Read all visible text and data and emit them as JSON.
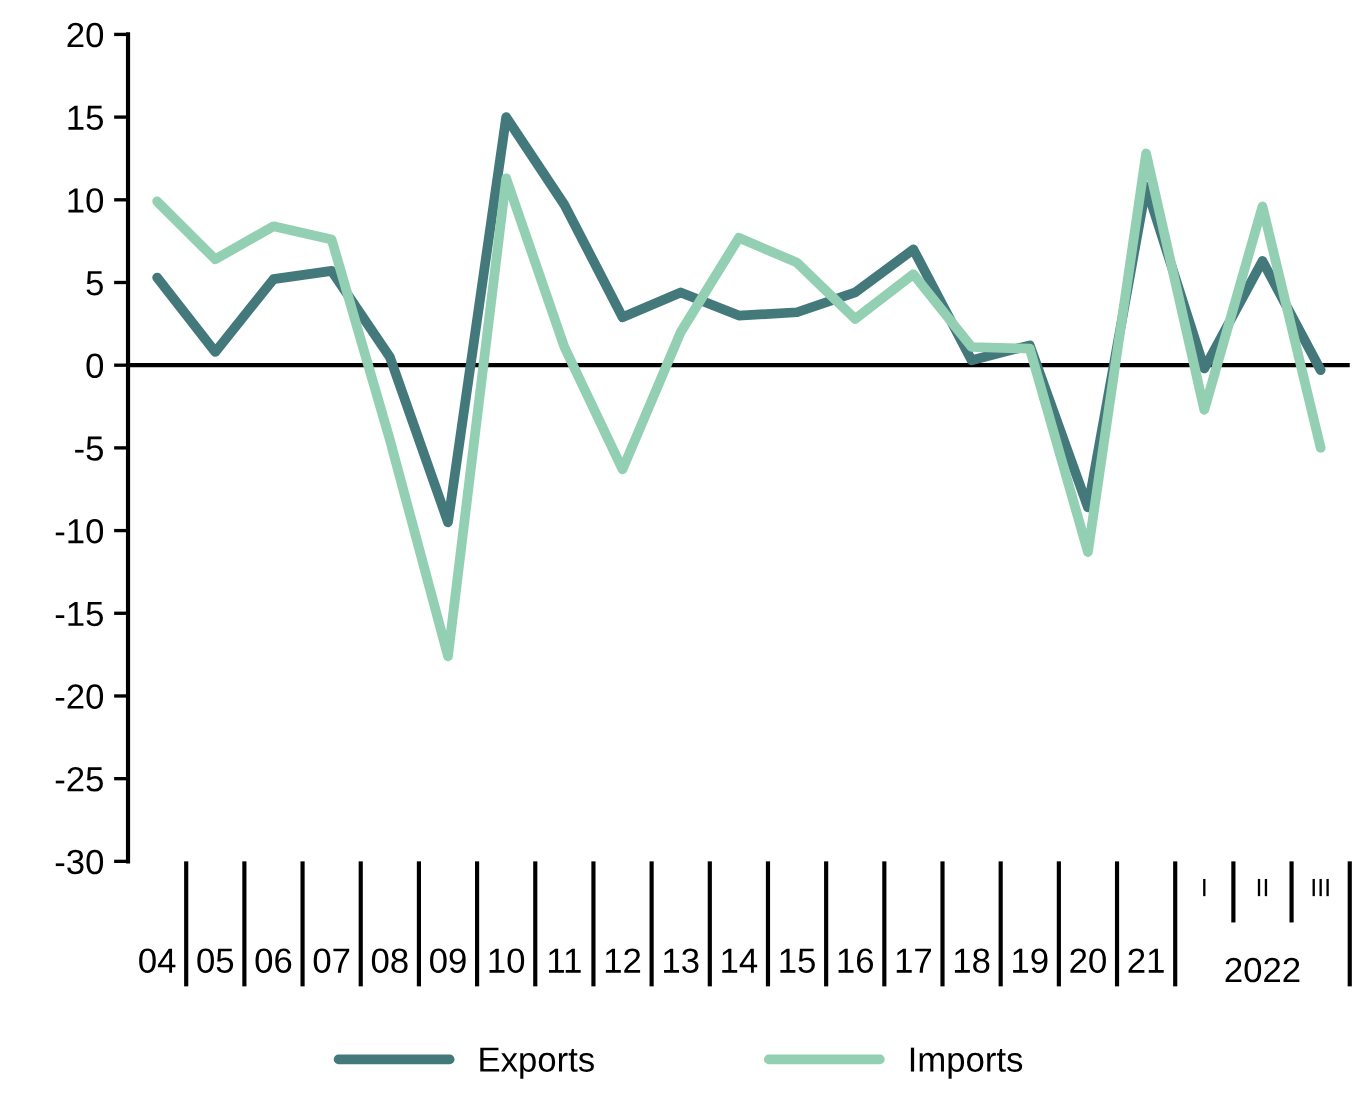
{
  "chart_data": {
    "type": "line",
    "categories": [
      "04",
      "05",
      "06",
      "07",
      "08",
      "09",
      "10",
      "11",
      "12",
      "13",
      "14",
      "15",
      "16",
      "17",
      "18",
      "19",
      "20",
      "21",
      "I",
      "II",
      "III"
    ],
    "series": [
      {
        "name": "Exports",
        "color": "#44797c",
        "values": [
          5.3,
          0.8,
          5.2,
          5.7,
          0.5,
          -9.5,
          15.0,
          9.7,
          2.9,
          4.4,
          3.0,
          3.2,
          4.4,
          7.0,
          0.3,
          1.2,
          -8.6,
          10.8,
          -0.2,
          6.3,
          -0.3
        ]
      },
      {
        "name": "Imports",
        "color": "#93d0b3",
        "values": [
          9.9,
          6.4,
          8.4,
          7.6,
          -4.5,
          -17.6,
          11.3,
          1.1,
          -6.3,
          2.0,
          7.7,
          6.2,
          2.8,
          5.5,
          1.1,
          1.0,
          -11.3,
          12.8,
          -2.7,
          9.6,
          -5.0
        ]
      }
    ],
    "annotations": [
      "2022"
    ],
    "ylim": [
      -30,
      20
    ],
    "yticks": [
      -30,
      -25,
      -20,
      -15,
      -10,
      -5,
      0,
      5,
      10,
      15,
      20
    ],
    "ref_lines": [
      {
        "axis": "y",
        "value": 0,
        "color": "#000000",
        "line_style": "solid"
      }
    ],
    "grid": false,
    "legend": "bottom",
    "marker": "none",
    "line_style": "solid"
  }
}
